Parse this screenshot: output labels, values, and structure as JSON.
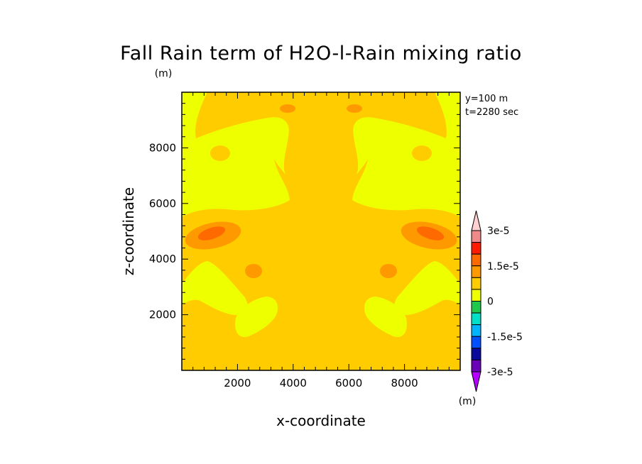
{
  "chart_data": {
    "type": "contour",
    "title": "Fall Rain term of H2O-l-Rain mixing ratio",
    "title_unit": "(m)",
    "xlabel": "x-coordinate",
    "ylabel": "z-coordinate",
    "xlim": [
      0,
      10000
    ],
    "ylim": [
      0,
      10000
    ],
    "xticks": [
      2000,
      4000,
      6000,
      8000
    ],
    "yticks": [
      2000,
      4000,
      6000,
      8000
    ],
    "xtick_labels": [
      "2000",
      "4000",
      "6000",
      "8000"
    ],
    "ytick_labels": [
      "2000",
      "4000",
      "6000",
      "8000"
    ],
    "annotations": [
      "y=100 m",
      "t=2280 sec"
    ],
    "colorbar": {
      "levels": [
        -3e-05,
        -2.5e-05,
        -2e-05,
        -1.5e-05,
        -1e-05,
        -5e-06,
        0,
        5e-06,
        1e-05,
        1.5e-05,
        2e-05,
        2.5e-05,
        3e-05
      ],
      "colors": [
        "#b300ff",
        "#6a00b8",
        "#0a0a9c",
        "#0050ff",
        "#00b4ff",
        "#00e0c8",
        "#1ec84a",
        "#eeff00",
        "#ffcc00",
        "#ff9900",
        "#ff6a00",
        "#ff1a00",
        "#f08a8a",
        "#ffd0d0"
      ],
      "labels": [
        {
          "value": 3e-05,
          "text": "3e-5"
        },
        {
          "value": 1.5e-05,
          "text": "1.5e-5"
        },
        {
          "value": 0,
          "text": "0"
        },
        {
          "value": -1.5e-05,
          "text": "-1.5e-5"
        },
        {
          "value": -3e-05,
          "text": "-3e-5"
        }
      ],
      "unit": "(m)"
    },
    "field_levels": {
      "background": 5e-06,
      "yellow_regions": 0,
      "orange_spots": 1e-05,
      "dark_orange_cores": 1.5e-05
    }
  }
}
